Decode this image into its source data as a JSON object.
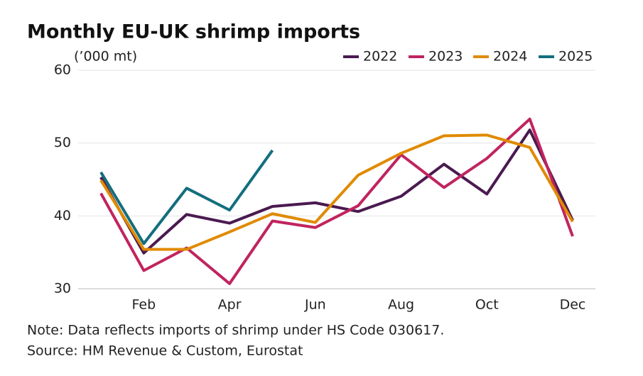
{
  "chart_data": {
    "type": "line",
    "title": "Monthly EU-UK shrimp imports",
    "y_label": "(’000 mt)",
    "note": "Note: Data reflects imports of shrimp under HS Code 030617.",
    "source": "Source: HM Revenue & Custom, Eurostat",
    "categories": [
      null,
      "Feb",
      null,
      "Apr",
      null,
      "Jun",
      null,
      "Aug",
      null,
      "Oct",
      null,
      "Dec"
    ],
    "series": [
      {
        "name": "2022",
        "color": "#4a1a4f",
        "values": [
          45.3,
          34.9,
          40.2,
          39.0,
          41.3,
          41.8,
          40.6,
          42.7,
          47.1,
          43.0,
          51.8,
          39.4
        ]
      },
      {
        "name": "2023",
        "color": "#c0245f",
        "values": [
          43.1,
          32.5,
          35.6,
          30.7,
          39.3,
          38.4,
          41.4,
          48.4,
          43.9,
          47.9,
          53.3,
          37.2
        ]
      },
      {
        "name": "2024",
        "color": "#e08a00",
        "values": [
          44.9,
          35.4,
          35.4,
          37.8,
          40.3,
          39.1,
          45.6,
          48.6,
          51.0,
          51.1,
          49.4,
          39.2
        ]
      },
      {
        "name": "2025",
        "color": "#136e7e",
        "values": [
          46.0,
          36.2,
          43.8,
          40.8,
          49.0,
          null,
          null,
          null,
          null,
          null,
          null,
          null
        ]
      }
    ],
    "ylim": [
      30,
      60
    ],
    "yticks": [
      30,
      40,
      50,
      60
    ],
    "grid": true,
    "legend": "top-right"
  }
}
